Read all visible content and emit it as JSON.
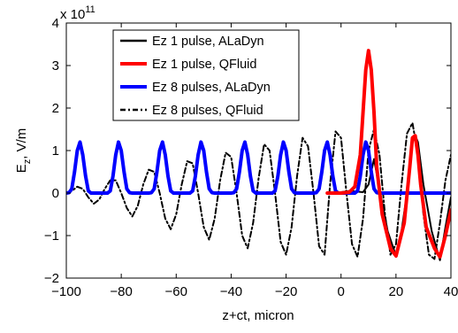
{
  "chart_data": {
    "type": "line",
    "xlabel": "z+ct, micron",
    "ylabel_main": "E",
    "ylabel_sub": "z",
    "ylabel_rest": ", V/m",
    "y_multiplier_base": "x 10",
    "y_multiplier_exp": "11",
    "xlim": [
      -100,
      40
    ],
    "ylim": [
      -2,
      4
    ],
    "y_scale": 100000000000.0,
    "xticks": [
      -100,
      -80,
      -60,
      -40,
      -20,
      0,
      20,
      40
    ],
    "yticks": [
      -2,
      -1,
      0,
      1,
      2,
      3,
      4
    ],
    "grid": false,
    "legend_position": "top",
    "colors": {
      "black": "#000000",
      "red": "#ff0000",
      "blue": "#0000ff"
    },
    "series": [
      {
        "name": "Ez 1 pulse, ALaDyn",
        "color": "#000000",
        "style": "solid",
        "x": [
          -5,
          -3,
          0,
          3,
          5,
          8,
          10,
          12,
          14,
          17,
          20,
          22,
          24,
          26,
          27,
          28,
          30,
          33,
          36,
          38,
          40
        ],
        "y": [
          0,
          0.01,
          0.02,
          0.05,
          0.04,
          0.02,
          0.2,
          0.8,
          0.1,
          -0.9,
          -1.48,
          -0.9,
          0,
          1.2,
          1.35,
          1.2,
          0.2,
          -0.9,
          -1.58,
          -0.8,
          -0.1
        ]
      },
      {
        "name": "Ez 1 pulse, QFluid",
        "color": "#ff0000",
        "style": "solid",
        "x": [
          -5,
          0,
          3,
          5,
          7,
          8,
          9,
          10,
          11,
          12,
          13,
          15,
          18,
          20,
          23,
          25,
          26,
          27,
          28,
          29,
          31,
          34,
          36,
          38,
          40
        ],
        "y": [
          0,
          0,
          0.02,
          0.15,
          0.9,
          1.9,
          2.9,
          3.35,
          2.9,
          1.9,
          0.6,
          -0.5,
          -1.3,
          -1.48,
          -0.7,
          0.6,
          1.3,
          1.35,
          0.9,
          0.2,
          -0.8,
          -1.3,
          -1.5,
          -1.0,
          -0.4
        ]
      },
      {
        "name": "Ez 8 pulses, ALaDyn",
        "color": "#0000ff",
        "style": "solid",
        "x": [
          -100,
          -99,
          -98,
          -97,
          -96,
          -95,
          -94,
          -93,
          -92,
          -91,
          -90,
          -89,
          -88,
          -87,
          -86,
          -85,
          -84,
          -83,
          -82,
          -81,
          -80,
          -79,
          -78,
          -77,
          -76,
          -75,
          -74,
          -73,
          -72,
          -71,
          -70,
          -69,
          -68,
          -67,
          -66,
          -65,
          -64,
          -63,
          -62,
          -61,
          -60,
          -59,
          -58,
          -57,
          -56,
          -55,
          -54,
          -53,
          -52,
          -51,
          -50,
          -49,
          -48,
          -47,
          -46,
          -45,
          -44,
          -43,
          -42,
          -41,
          -40,
          -39,
          -38,
          -37,
          -36,
          -35,
          -34,
          -33,
          -32,
          -31,
          -30,
          -29,
          -28,
          -27,
          -26,
          -25,
          -24,
          -23,
          -22,
          -21,
          -20,
          -19,
          -18,
          -17,
          -16,
          -15,
          -14,
          -13,
          -12,
          -11,
          -10,
          -9,
          -8,
          -7,
          -6,
          -5,
          -4,
          -3,
          -2,
          -1,
          0,
          1,
          2,
          3,
          4,
          5,
          6,
          7,
          8,
          9,
          10,
          11,
          12,
          13,
          14,
          15,
          16,
          17,
          18,
          19,
          20,
          21,
          22,
          23,
          24,
          25,
          26,
          27,
          28,
          29,
          30,
          31,
          32,
          33,
          34,
          35,
          36,
          37,
          38,
          39,
          40
        ],
        "y": [
          0,
          0.01,
          0.1,
          0.5,
          1.0,
          1.2,
          0.9,
          0.4,
          0.05,
          0,
          0,
          0,
          0,
          0,
          0,
          0,
          0.05,
          0.4,
          0.9,
          1.2,
          1.0,
          0.5,
          0.1,
          0.01,
          0,
          0,
          0,
          0,
          0,
          0,
          0,
          0.01,
          0.1,
          0.5,
          1.0,
          1.2,
          0.9,
          0.4,
          0.05,
          0,
          0,
          0,
          0,
          0,
          0,
          0,
          0.05,
          0.4,
          0.9,
          1.2,
          1.0,
          0.5,
          0.1,
          0.01,
          0,
          0,
          0,
          0,
          0,
          0,
          0,
          0.01,
          0.1,
          0.5,
          1.0,
          1.2,
          0.9,
          0.4,
          0.05,
          0,
          0,
          0,
          0,
          0,
          0,
          0,
          0.05,
          0.4,
          0.9,
          1.2,
          1.0,
          0.5,
          0.1,
          0.01,
          0,
          0,
          0,
          0,
          0,
          0,
          0,
          0.01,
          0.1,
          0.5,
          1.0,
          1.2,
          0.9,
          0.4,
          0.05,
          0,
          0,
          0,
          0,
          0,
          0,
          0,
          0.05,
          0.4,
          0.9,
          1.2,
          1.0,
          0.5,
          0.1,
          0.01,
          0,
          0,
          0,
          0,
          0,
          0,
          0,
          0,
          0,
          0,
          0,
          0,
          0,
          0,
          0,
          0,
          0,
          0,
          0,
          0,
          0,
          0,
          0,
          0,
          0,
          0,
          0
        ]
      },
      {
        "name": "Ez 8 pulses, QFluid",
        "color": "#000000",
        "style": "dashdot",
        "x": [
          -100,
          -98,
          -96,
          -94,
          -92,
          -90,
          -88,
          -86,
          -84,
          -82,
          -80,
          -78,
          -76,
          -74,
          -72,
          -70,
          -68,
          -66,
          -64,
          -62,
          -60,
          -58,
          -56,
          -54,
          -52,
          -50,
          -48,
          -46,
          -44,
          -42,
          -40,
          -38,
          -36,
          -34,
          -32,
          -30,
          -28,
          -26,
          -24,
          -22,
          -20,
          -18,
          -16,
          -14,
          -12,
          -10,
          -8,
          -6,
          -4,
          -2,
          0,
          2,
          4,
          6,
          8,
          10,
          12,
          14,
          16,
          18,
          20,
          22,
          24,
          26,
          28,
          30,
          32,
          34,
          36,
          38,
          40
        ],
        "y": [
          0,
          0.05,
          0.15,
          0.1,
          -0.1,
          -0.25,
          -0.15,
          0.1,
          0.3,
          0.3,
          0,
          -0.35,
          -0.55,
          -0.3,
          0.2,
          0.55,
          0.5,
          0,
          -0.6,
          -0.85,
          -0.5,
          0.2,
          0.75,
          0.7,
          0,
          -0.8,
          -1.1,
          -0.6,
          0.3,
          0.95,
          0.85,
          0,
          -1.0,
          -1.3,
          -0.7,
          0.35,
          1.15,
          1.0,
          0,
          -1.15,
          -1.45,
          -0.8,
          0.4,
          1.3,
          1.1,
          0,
          -1.25,
          -1.45,
          0.2,
          1.45,
          1.3,
          0,
          -1.2,
          -1.5,
          -0.6,
          1.0,
          1.5,
          0.9,
          -0.5,
          -1.45,
          -1.2,
          0.2,
          1.4,
          1.65,
          0.9,
          -0.5,
          -1.45,
          -1.55,
          -0.7,
          0.3,
          0.9
        ]
      }
    ]
  }
}
